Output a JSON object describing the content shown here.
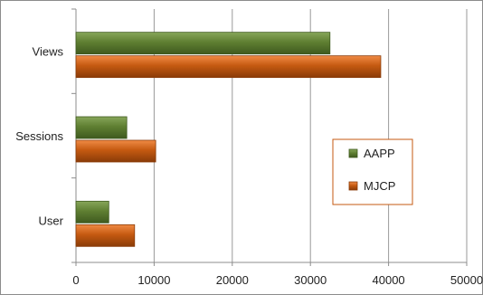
{
  "chart_data": {
    "type": "bar",
    "orientation": "horizontal",
    "title": "",
    "xlabel": "",
    "ylabel": "",
    "categories": [
      "Views",
      "Sessions",
      "User"
    ],
    "series": [
      {
        "name": "AAPP",
        "values": [
          32500,
          6500,
          4200
        ],
        "color": "#5f7f32"
      },
      {
        "name": "MJCP",
        "values": [
          39000,
          10200,
          7500
        ],
        "color": "#c55a11"
      }
    ],
    "xlim": [
      0,
      50000
    ],
    "xticks": [
      0,
      10000,
      20000,
      30000,
      40000,
      50000
    ],
    "xtick_labels": [
      "0",
      "10000",
      "20000",
      "30000",
      "40000",
      "50000"
    ],
    "grid": "vertical",
    "legend_position": "right",
    "frame_color": "#8c8c8c",
    "grid_color": "#9a9a9a",
    "legend_border_color": "#c55a11"
  }
}
